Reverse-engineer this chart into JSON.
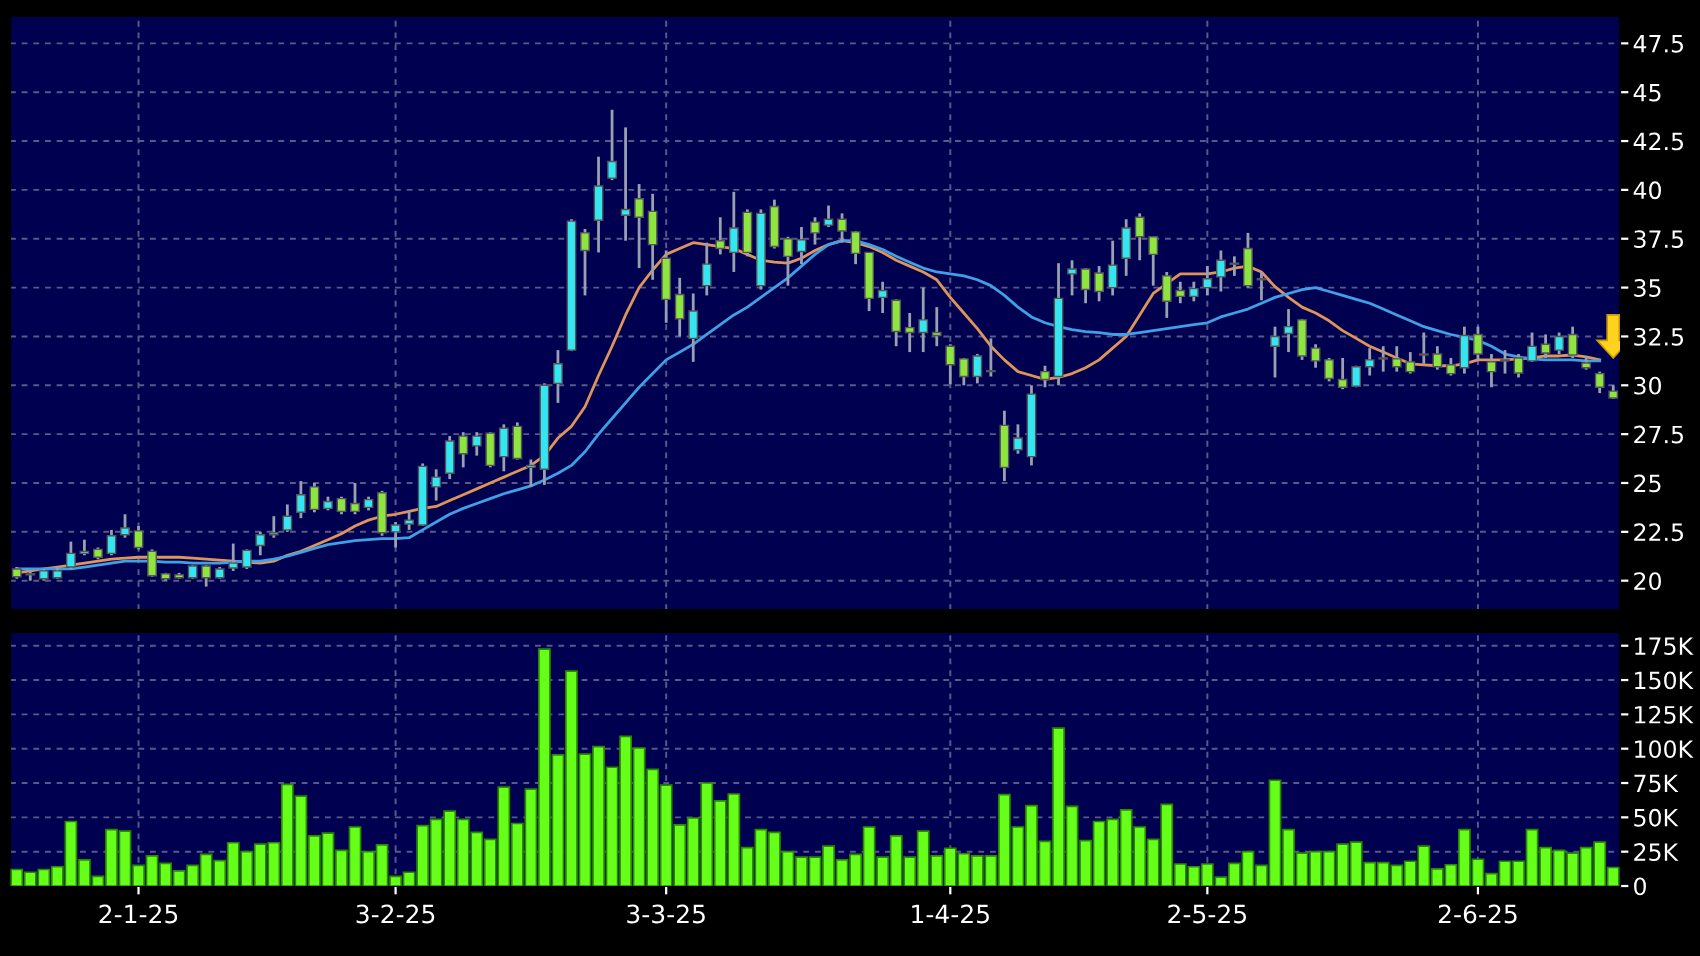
{
  "chart_data": [
    {
      "type": "candlestick",
      "categories": [
        null,
        null,
        null,
        null,
        null,
        null,
        null,
        null,
        null,
        null,
        null,
        null,
        null,
        null,
        null,
        null,
        null,
        null,
        null,
        null,
        null,
        null,
        null,
        null,
        null,
        null,
        null,
        null,
        null,
        null,
        null,
        null,
        null,
        null,
        null,
        null,
        null,
        null,
        null,
        null,
        null,
        null,
        null,
        null,
        null,
        null,
        null,
        null,
        null,
        null,
        null,
        null,
        null,
        null,
        null,
        null,
        null,
        null,
        null,
        null,
        null,
        null,
        null,
        null,
        null,
        null,
        null,
        null,
        null,
        null,
        null,
        null,
        null,
        null,
        null,
        null,
        null,
        null,
        null,
        null,
        null,
        null,
        null,
        null,
        null,
        null,
        null,
        null,
        null,
        null,
        null,
        null,
        null,
        null,
        null,
        null,
        null,
        null,
        null,
        null,
        null,
        null,
        null,
        null,
        null,
        null,
        null,
        null,
        null,
        null,
        null,
        null,
        null,
        null,
        null,
        null,
        null,
        null,
        null
      ],
      "ohlc": [
        [
          20.6,
          20.7,
          20.1,
          20.2
        ],
        [
          20.3,
          20.5,
          20.0,
          20.35
        ],
        [
          20.1,
          20.6,
          20.0,
          20.5
        ],
        [
          20.15,
          20.7,
          20.1,
          20.5
        ],
        [
          20.7,
          22.0,
          20.6,
          21.4
        ],
        [
          21.4,
          22.1,
          21.3,
          21.5
        ],
        [
          21.6,
          21.7,
          21.1,
          21.2
        ],
        [
          21.4,
          22.6,
          21.3,
          22.3
        ],
        [
          22.35,
          23.4,
          22.2,
          22.7
        ],
        [
          22.55,
          22.8,
          21.6,
          21.7
        ],
        [
          21.5,
          21.6,
          20.2,
          20.25
        ],
        [
          20.35,
          20.4,
          20.0,
          20.1
        ],
        [
          20.3,
          20.4,
          20.1,
          20.15
        ],
        [
          20.15,
          20.8,
          20.1,
          20.75
        ],
        [
          20.75,
          20.8,
          19.7,
          20.15
        ],
        [
          20.15,
          20.7,
          20.1,
          20.6
        ],
        [
          20.65,
          21.9,
          20.5,
          20.9
        ],
        [
          20.7,
          21.6,
          20.6,
          21.55
        ],
        [
          21.8,
          22.5,
          21.3,
          22.35
        ],
        [
          22.35,
          23.3,
          22.2,
          22.45
        ],
        [
          22.6,
          23.9,
          22.5,
          23.3
        ],
        [
          23.5,
          25.1,
          23.2,
          24.4
        ],
        [
          24.8,
          25.0,
          23.5,
          23.65
        ],
        [
          23.7,
          24.3,
          23.6,
          24.05
        ],
        [
          24.2,
          24.3,
          23.4,
          23.55
        ],
        [
          23.95,
          25.0,
          23.4,
          23.55
        ],
        [
          23.75,
          24.3,
          23.6,
          24.15
        ],
        [
          24.5,
          24.6,
          22.3,
          22.45
        ],
        [
          22.5,
          23.0,
          21.7,
          22.85
        ],
        [
          22.9,
          23.6,
          22.6,
          23.1
        ],
        [
          22.85,
          26.0,
          22.8,
          25.85
        ],
        [
          24.8,
          25.7,
          24.1,
          25.3
        ],
        [
          25.5,
          27.4,
          25.2,
          27.15
        ],
        [
          27.4,
          27.6,
          25.8,
          26.5
        ],
        [
          26.9,
          27.6,
          26.4,
          27.4
        ],
        [
          27.55,
          27.6,
          25.8,
          25.9
        ],
        [
          26.35,
          28.0,
          25.6,
          27.8
        ],
        [
          27.9,
          28.1,
          26.2,
          26.25
        ],
        [
          25.8,
          26.2,
          24.8,
          25.9
        ],
        [
          25.7,
          30.1,
          24.9,
          30.0
        ],
        [
          30.1,
          31.8,
          29.1,
          31.1
        ],
        [
          31.8,
          38.5,
          31.75,
          38.4
        ],
        [
          37.8,
          38.0,
          34.6,
          36.9
        ],
        [
          38.45,
          41.7,
          36.8,
          40.2
        ],
        [
          40.6,
          44.1,
          40.5,
          41.45
        ],
        [
          38.7,
          43.2,
          37.4,
          39.0
        ],
        [
          39.55,
          40.3,
          36.0,
          38.6
        ],
        [
          38.9,
          39.8,
          35.4,
          37.2
        ],
        [
          36.5,
          36.9,
          33.2,
          34.4
        ],
        [
          34.65,
          35.5,
          32.5,
          33.4
        ],
        [
          32.4,
          34.7,
          31.2,
          33.8
        ],
        [
          35.1,
          37.3,
          34.6,
          36.2
        ],
        [
          37.4,
          38.6,
          36.7,
          37.0
        ],
        [
          36.8,
          39.9,
          35.8,
          38.05
        ],
        [
          38.85,
          39.0,
          36.6,
          36.8
        ],
        [
          35.1,
          39.0,
          34.9,
          38.8
        ],
        [
          39.15,
          39.5,
          37.0,
          37.1
        ],
        [
          37.5,
          37.6,
          35.1,
          36.6
        ],
        [
          36.85,
          38.1,
          36.2,
          37.45
        ],
        [
          38.35,
          38.6,
          37.2,
          37.8
        ],
        [
          38.2,
          39.2,
          38.1,
          38.5
        ],
        [
          38.5,
          38.8,
          37.3,
          37.9
        ],
        [
          37.85,
          37.9,
          36.2,
          36.75
        ],
        [
          36.8,
          36.8,
          33.8,
          34.45
        ],
        [
          34.5,
          35.3,
          33.7,
          34.85
        ],
        [
          34.35,
          34.4,
          32.0,
          32.75
        ],
        [
          32.95,
          33.7,
          31.7,
          32.7
        ],
        [
          32.7,
          35.0,
          31.7,
          33.35
        ],
        [
          32.7,
          34.0,
          32.0,
          32.55
        ],
        [
          32.0,
          32.1,
          30.05,
          31.05
        ],
        [
          31.35,
          31.4,
          30.0,
          30.45
        ],
        [
          30.45,
          31.6,
          30.1,
          31.5
        ],
        [
          30.7,
          32.4,
          30.45,
          30.75
        ],
        [
          27.95,
          28.7,
          25.1,
          25.8
        ],
        [
          26.7,
          28.0,
          26.5,
          27.3
        ],
        [
          26.35,
          30.0,
          25.9,
          29.55
        ],
        [
          30.7,
          31.0,
          29.9,
          30.3
        ],
        [
          30.45,
          36.25,
          30.0,
          34.45
        ],
        [
          35.7,
          36.4,
          34.6,
          35.95
        ],
        [
          35.95,
          36.0,
          34.2,
          34.9
        ],
        [
          35.75,
          36.1,
          34.3,
          34.8
        ],
        [
          35.0,
          37.4,
          34.6,
          36.15
        ],
        [
          36.5,
          38.5,
          35.6,
          38.05
        ],
        [
          38.6,
          38.8,
          36.4,
          37.6
        ],
        [
          37.6,
          37.6,
          35.1,
          36.7
        ],
        [
          35.6,
          35.8,
          33.45,
          34.3
        ],
        [
          34.85,
          35.3,
          34.2,
          34.55
        ],
        [
          34.55,
          35.3,
          34.3,
          34.95
        ],
        [
          35.0,
          36.1,
          34.6,
          35.45
        ],
        [
          35.55,
          36.9,
          34.8,
          36.4
        ],
        [
          36.2,
          36.6,
          35.6,
          36.25
        ],
        [
          37.0,
          37.8,
          35.0,
          35.1
        ],
        [
          35.4,
          35.8,
          34.35,
          35.45
        ],
        [
          32.0,
          33.0,
          30.4,
          32.5
        ],
        [
          32.65,
          33.9,
          31.7,
          33.0
        ],
        [
          33.35,
          33.4,
          31.3,
          31.5
        ],
        [
          31.9,
          32.1,
          30.9,
          31.25
        ],
        [
          31.3,
          31.4,
          30.2,
          30.35
        ],
        [
          30.3,
          31.4,
          29.8,
          29.9
        ],
        [
          29.95,
          31.0,
          29.9,
          30.95
        ],
        [
          30.95,
          31.9,
          30.5,
          31.3
        ],
        [
          31.4,
          32.0,
          30.7,
          31.35
        ],
        [
          31.35,
          32.0,
          30.7,
          30.95
        ],
        [
          31.2,
          31.7,
          30.6,
          30.7
        ],
        [
          31.55,
          32.7,
          31.1,
          31.6
        ],
        [
          31.6,
          32.0,
          30.8,
          30.95
        ],
        [
          31.05,
          31.4,
          30.5,
          30.6
        ],
        [
          30.9,
          33.0,
          30.6,
          32.55
        ],
        [
          32.6,
          33.0,
          31.3,
          31.6
        ],
        [
          31.2,
          31.6,
          29.9,
          30.7
        ],
        [
          31.25,
          31.8,
          30.6,
          31.3
        ],
        [
          31.4,
          31.6,
          30.4,
          30.63
        ],
        [
          31.25,
          32.7,
          31.2,
          31.99
        ],
        [
          32.1,
          32.6,
          31.4,
          31.65
        ],
        [
          31.8,
          32.7,
          31.6,
          32.5
        ],
        [
          32.6,
          33.0,
          31.4,
          31.55
        ],
        [
          31.14,
          31.5,
          30.8,
          30.9
        ],
        [
          30.6,
          30.7,
          29.6,
          29.9
        ],
        [
          29.7,
          30.0,
          29.3,
          29.35
        ]
      ],
      "colors": [
        "#8ee53f",
        "#33e6f2",
        "#33e6f2",
        "#33e6f2",
        "#33e6f2",
        "#33e6f2",
        "#8ee53f",
        "#33e6f2",
        "#33e6f2",
        "#8ee53f",
        "#8ee53f",
        "#8ee53f",
        "#8ee53f",
        "#33e6f2",
        "#8ee53f",
        "#33e6f2",
        "#33e6f2",
        "#33e6f2",
        "#33e6f2",
        "#33e6f2",
        "#33e6f2",
        "#33e6f2",
        "#8ee53f",
        "#33e6f2",
        "#8ee53f",
        "#8ee53f",
        "#33e6f2",
        "#8ee53f",
        "#33e6f2",
        "#33e6f2",
        "#33e6f2",
        "#33e6f2",
        "#33e6f2",
        "#8ee53f",
        "#33e6f2",
        "#8ee53f",
        "#33e6f2",
        "#8ee53f",
        "#33e6f2",
        "#33e6f2",
        "#33e6f2",
        "#33e6f2",
        "#8ee53f",
        "#33e6f2",
        "#33e6f2",
        "#33e6f2",
        "#8ee53f",
        "#8ee53f",
        "#8ee53f",
        "#8ee53f",
        "#33e6f2",
        "#33e6f2",
        "#8ee53f",
        "#33e6f2",
        "#8ee53f",
        "#33e6f2",
        "#8ee53f",
        "#8ee53f",
        "#33e6f2",
        "#8ee53f",
        "#33e6f2",
        "#8ee53f",
        "#8ee53f",
        "#8ee53f",
        "#33e6f2",
        "#8ee53f",
        "#8ee53f",
        "#33e6f2",
        "#8ee53f",
        "#8ee53f",
        "#8ee53f",
        "#33e6f2",
        "#33e6f2",
        "#8ee53f",
        "#33e6f2",
        "#33e6f2",
        "#8ee53f",
        "#33e6f2",
        "#33e6f2",
        "#8ee53f",
        "#8ee53f",
        "#33e6f2",
        "#33e6f2",
        "#8ee53f",
        "#8ee53f",
        "#8ee53f",
        "#8ee53f",
        "#33e6f2",
        "#33e6f2",
        "#33e6f2",
        "#33e6f2",
        "#8ee53f",
        "#33e6f2",
        "#33e6f2",
        "#33e6f2",
        "#8ee53f",
        "#8ee53f",
        "#8ee53f",
        "#8ee53f",
        "#33e6f2",
        "#33e6f2",
        "#8ee53f",
        "#8ee53f",
        "#8ee53f",
        "#33e6f2",
        "#8ee53f",
        "#8ee53f",
        "#33e6f2",
        "#8ee53f",
        "#8ee53f",
        "#33e6f2",
        "#8ee53f",
        "#33e6f2",
        "#8ee53f",
        "#33e6f2",
        "#8ee53f",
        "#8ee53f",
        "#8ee53f",
        "#8ee53f"
      ],
      "series": [
        {
          "type": "line",
          "color": "#e0945a",
          "values": [
            20.4,
            20.5,
            20.6,
            20.7,
            20.8,
            20.9,
            21.0,
            21.1,
            21.15,
            21.2,
            21.2,
            21.2,
            21.2,
            21.15,
            21.1,
            21.05,
            21.0,
            20.95,
            20.9,
            21.0,
            21.3,
            21.5,
            21.8,
            22.1,
            22.4,
            22.8,
            23.1,
            23.3,
            23.4,
            23.55,
            23.7,
            23.8,
            24.1,
            24.4,
            24.7,
            25.0,
            25.3,
            25.6,
            25.9,
            26.4,
            27.3,
            27.9,
            28.9,
            30.5,
            32.0,
            33.6,
            35.0,
            35.9,
            36.7,
            37.0,
            37.3,
            37.2,
            37.1,
            37.0,
            36.7,
            36.4,
            36.3,
            36.25,
            36.5,
            36.9,
            37.2,
            37.4,
            37.3,
            37.1,
            36.8,
            36.4,
            36.1,
            35.8,
            35.4,
            34.5,
            33.7,
            32.9,
            32.0,
            31.3,
            30.7,
            30.5,
            30.3,
            30.4,
            30.6,
            30.9,
            31.3,
            31.9,
            32.5,
            33.6,
            34.7,
            35.2,
            35.7,
            35.7,
            35.7,
            35.8,
            36.0,
            36.1,
            35.8,
            35.05,
            34.5,
            34.0,
            33.7,
            33.3,
            32.8,
            32.4,
            32.0,
            31.7,
            31.4,
            31.1,
            31.05,
            31.0,
            31.0,
            31.1,
            31.3,
            31.3,
            31.3,
            31.35,
            31.4,
            31.5,
            31.5,
            31.55,
            31.45,
            31.3,
            null
          ]
        },
        {
          "type": "line",
          "color": "#3fa0e6",
          "values": [
            20.6,
            20.6,
            20.6,
            20.6,
            20.6,
            20.7,
            20.8,
            20.9,
            21.0,
            21.0,
            21.0,
            20.95,
            20.95,
            20.9,
            20.9,
            20.9,
            20.95,
            21.0,
            21.0,
            21.1,
            21.25,
            21.45,
            21.65,
            21.85,
            21.95,
            22.05,
            22.1,
            22.15,
            22.15,
            22.2,
            22.6,
            23.0,
            23.4,
            23.7,
            23.95,
            24.2,
            24.45,
            24.65,
            24.85,
            25.15,
            25.5,
            25.9,
            26.6,
            27.5,
            28.3,
            29.1,
            29.9,
            30.6,
            31.3,
            31.7,
            32.1,
            32.6,
            33.1,
            33.6,
            34.0,
            34.5,
            35.0,
            35.5,
            36.1,
            36.7,
            37.2,
            37.4,
            37.4,
            37.2,
            36.95,
            36.6,
            36.3,
            36.0,
            35.8,
            35.7,
            35.6,
            35.4,
            35.1,
            34.6,
            34.0,
            33.5,
            33.2,
            33.0,
            32.85,
            32.75,
            32.7,
            32.6,
            32.6,
            32.7,
            32.8,
            32.9,
            33.0,
            33.1,
            33.2,
            33.5,
            33.7,
            33.9,
            34.2,
            34.5,
            34.7,
            34.9,
            35.0,
            34.8,
            34.6,
            34.4,
            34.2,
            33.9,
            33.6,
            33.3,
            33.0,
            32.8,
            32.6,
            32.45,
            32.3,
            32.0,
            31.6,
            31.45,
            31.35,
            31.3,
            31.3,
            31.3,
            31.25,
            31.25,
            null
          ]
        }
      ],
      "ylim": [
        18.5,
        48.9
      ],
      "yticks": [
        20,
        22.5,
        25,
        27.5,
        30,
        32.5,
        35,
        37.5,
        40,
        42.5,
        45,
        47.5
      ],
      "grid": true,
      "tick_labels": "y"
    },
    {
      "type": "bar",
      "categories": [
        null,
        null,
        null,
        null,
        null,
        null,
        null,
        null,
        null,
        "2-1-25",
        null,
        null,
        null,
        null,
        null,
        null,
        null,
        null,
        null,
        null,
        null,
        null,
        null,
        null,
        null,
        null,
        null,
        null,
        "3-2-25",
        null,
        null,
        null,
        null,
        null,
        null,
        null,
        null,
        null,
        null,
        null,
        null,
        null,
        null,
        null,
        null,
        null,
        null,
        null,
        "3-3-25",
        null,
        null,
        null,
        null,
        null,
        null,
        null,
        null,
        null,
        null,
        null,
        null,
        null,
        null,
        null,
        null,
        null,
        null,
        null,
        null,
        "1-4-25",
        null,
        null,
        null,
        null,
        null,
        null,
        null,
        null,
        null,
        null,
        null,
        null,
        null,
        null,
        null,
        null,
        null,
        null,
        "2-5-25",
        null,
        null,
        null,
        null,
        null,
        null,
        null,
        null,
        null,
        null,
        null,
        null,
        null,
        null,
        null,
        null,
        null,
        null,
        null,
        "2-6-25",
        null,
        null,
        null,
        null,
        null,
        null,
        null,
        null,
        null,
        null
      ],
      "values": [
        12000,
        10000,
        12000,
        14000,
        47000,
        19000,
        7000,
        41000,
        40000,
        15000,
        22000,
        16500,
        11000,
        15000,
        23000,
        18500,
        31500,
        25000,
        30500,
        31500,
        74000,
        65500,
        36500,
        38500,
        26000,
        43000,
        25000,
        30000,
        7000,
        10000,
        44000,
        48500,
        54500,
        48500,
        39000,
        34000,
        72000,
        45500,
        70500,
        172500,
        95500,
        156500,
        96000,
        101500,
        86500,
        109000,
        100500,
        85000,
        73500,
        44500,
        49500,
        75000,
        62000,
        67000,
        28000,
        41000,
        39000,
        25000,
        21000,
        21000,
        29000,
        19000,
        23000,
        43000,
        21000,
        36500,
        21000,
        40000,
        22000,
        27500,
        23500,
        22000,
        22000,
        66500,
        43000,
        58500,
        32500,
        115000,
        58000,
        33000,
        47000,
        48500,
        55500,
        43000,
        34000,
        59500,
        16000,
        14000,
        16000,
        6500,
        16500,
        25000,
        15000,
        77000,
        41000,
        24000,
        25000,
        25000,
        30500,
        32000,
        17000,
        17000,
        15000,
        18000,
        29000,
        12500,
        15500,
        41000,
        19500,
        9000,
        18000,
        18000,
        41000,
        28000,
        26000,
        24000,
        28000,
        32000,
        13500
      ],
      "color": "#66ff19",
      "ylim": [
        0,
        185000
      ],
      "yticks": [
        {
          "value": 0,
          "label": "0"
        },
        {
          "value": 25000,
          "label": "25K"
        },
        {
          "value": 50000,
          "label": "50K"
        },
        {
          "value": 75000,
          "label": "75K"
        },
        {
          "value": 100000,
          "label": "100K"
        },
        {
          "value": 125000,
          "label": "125K"
        },
        {
          "value": 150000,
          "label": "150K"
        },
        {
          "value": 175000,
          "label": "175K"
        }
      ],
      "grid": true
    }
  ]
}
